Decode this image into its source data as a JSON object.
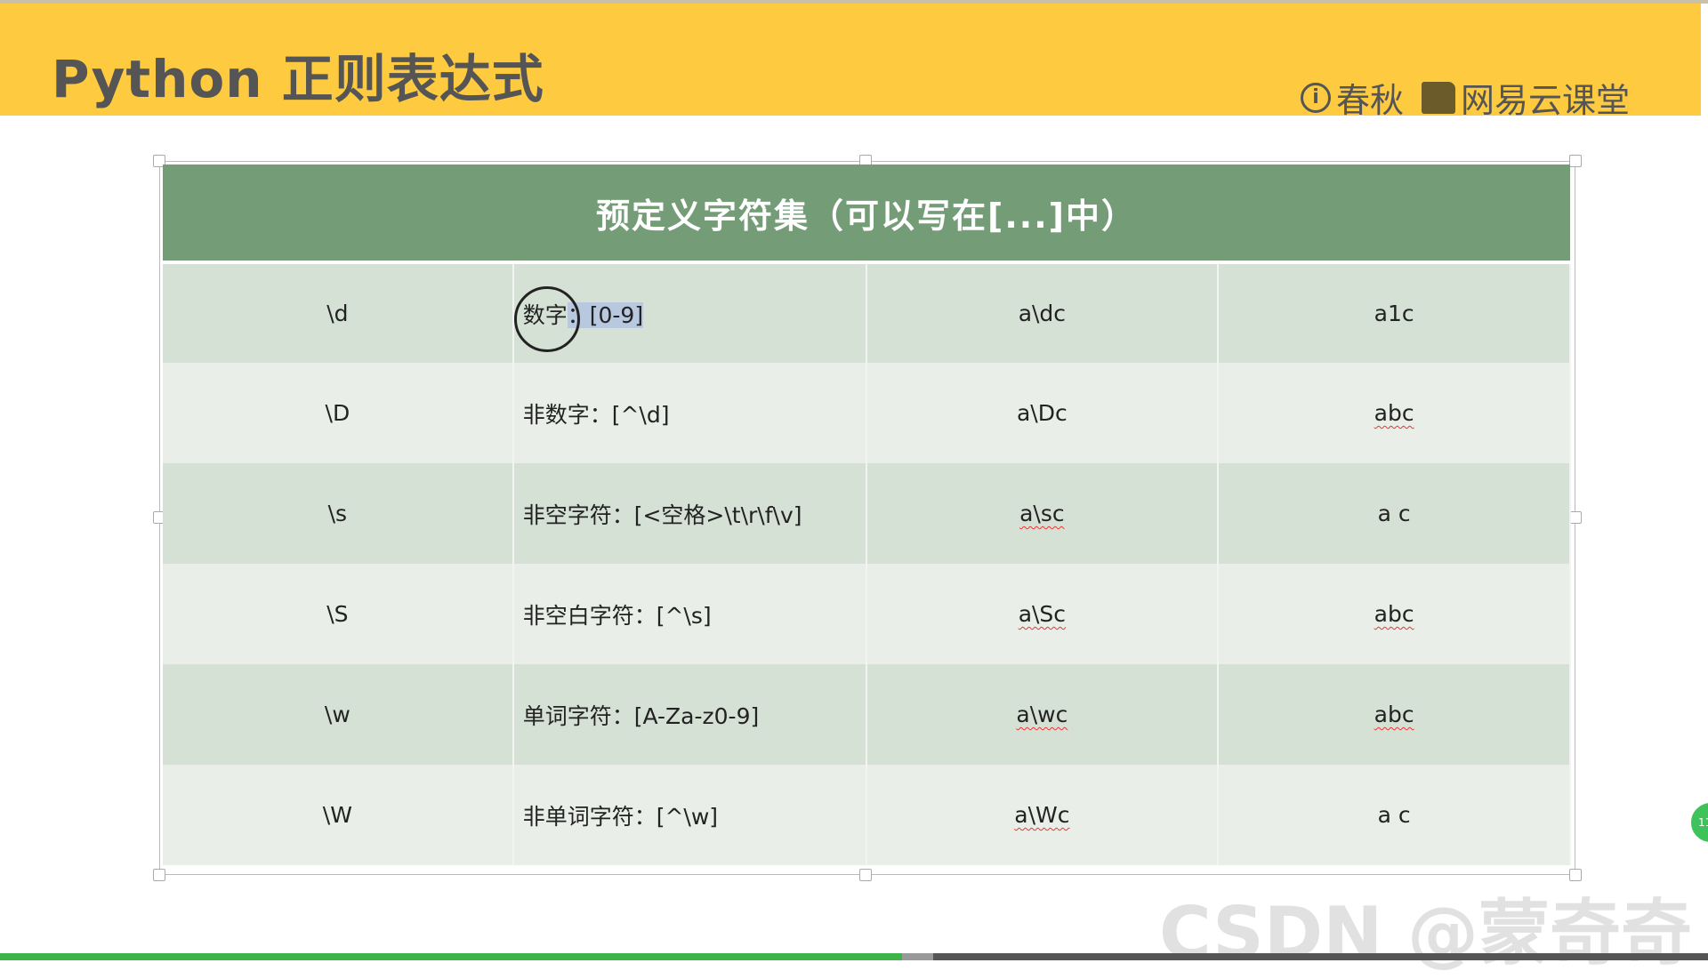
{
  "header": {
    "title": "Python 正则表达式",
    "logo_chunqiu": "春秋",
    "logo_netease": "网易云课堂",
    "colors": {
      "bg": "#fdca40"
    }
  },
  "table": {
    "title": "预定义字符集（可以写在[...]中）",
    "header_color": "#739c77",
    "rows": [
      {
        "token": "\\d",
        "desc_a": "数字",
        "desc_b": "：[0-9]",
        "pattern": "a\\dc",
        "match": "a1c"
      },
      {
        "token": "\\D",
        "desc": "非数字：[^\\d]",
        "pattern": "a\\Dc",
        "match": "abc"
      },
      {
        "token": "\\s",
        "desc": "非空字符：[<空格>\\t\\r\\f\\v]",
        "pattern": "a\\sc",
        "match": "a c"
      },
      {
        "token": "\\S",
        "desc": "非空白字符：[^\\s]",
        "pattern": "a\\Sc",
        "match": "abc"
      },
      {
        "token": "\\w",
        "desc": "单词字符：[A-Za-z0-9]",
        "pattern": "a\\wc",
        "match": "abc"
      },
      {
        "token": "\\W",
        "desc": "非单词字符：[^\\w]",
        "pattern": "a\\Wc",
        "match": "a c"
      }
    ]
  },
  "video": {
    "progress_percent": 52.8
  },
  "watermark": "CSDN @蒙奇奇",
  "float_button": "11"
}
